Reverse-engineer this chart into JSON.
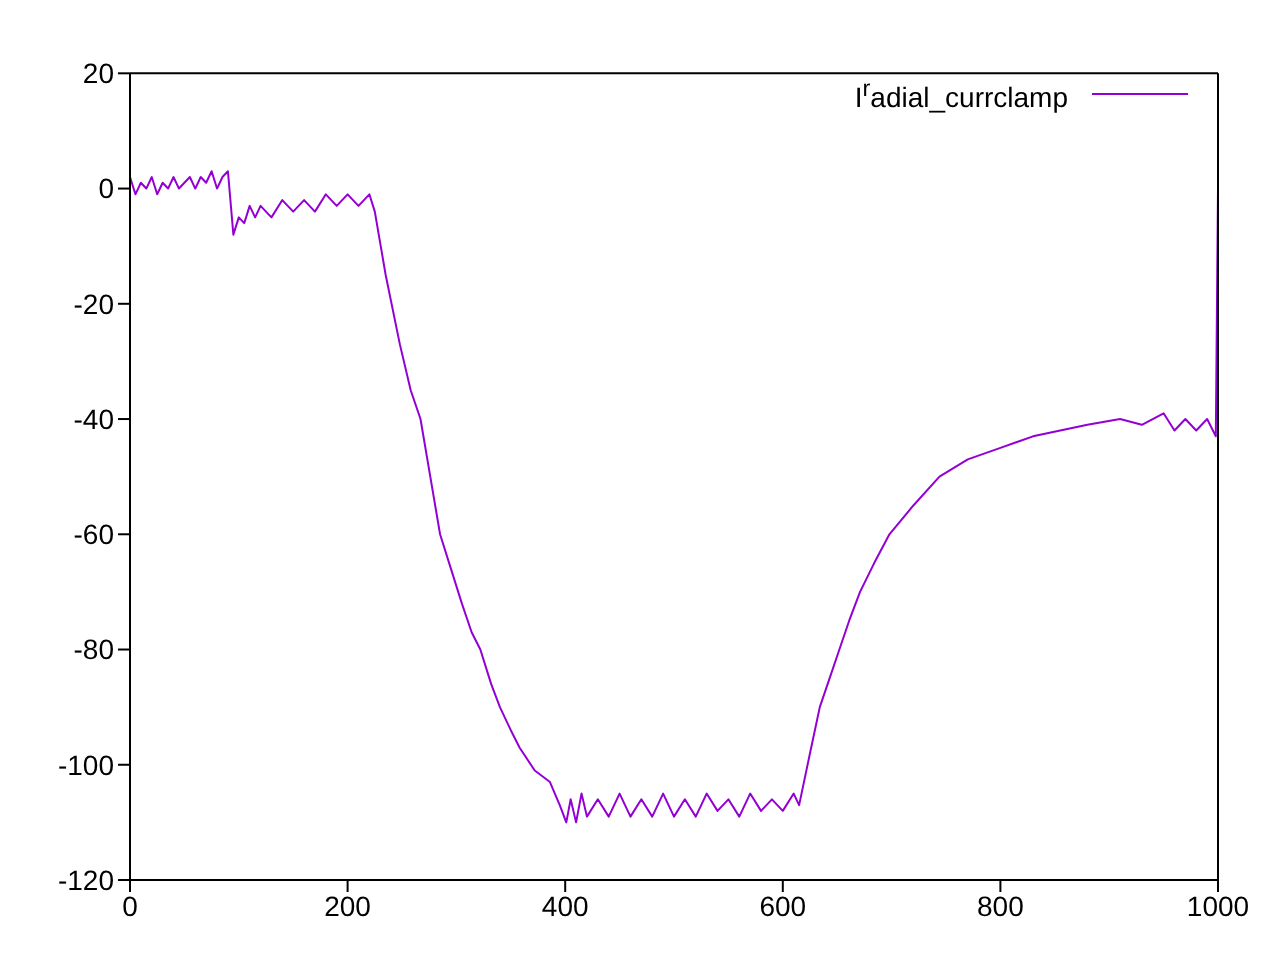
{
  "chart_data": {
    "type": "line",
    "xlim": [
      0,
      1000
    ],
    "xticks": [
      0,
      200,
      400,
      600,
      800,
      1000
    ],
    "ylim": [
      -120,
      20
    ],
    "yticks": [
      -120,
      -100,
      -80,
      -60,
      -40,
      -20,
      0,
      20
    ],
    "grid": false,
    "legend": "top right",
    "marker": "none",
    "line_style": "solid",
    "x": [
      0,
      5,
      10,
      15,
      20,
      25,
      30,
      35,
      40,
      45,
      50,
      55,
      60,
      65,
      70,
      75,
      80,
      85,
      90,
      95,
      100,
      105,
      110,
      115,
      120,
      130,
      140,
      150,
      160,
      170,
      180,
      190,
      200,
      210,
      220,
      225,
      235,
      248,
      258,
      267,
      276,
      285,
      295,
      305,
      314,
      322,
      332,
      340,
      350,
      358,
      372,
      386,
      395,
      401,
      405,
      410,
      415,
      420,
      430,
      440,
      450,
      460,
      470,
      480,
      490,
      500,
      510,
      520,
      530,
      540,
      550,
      560,
      570,
      580,
      590,
      600,
      610,
      615,
      625,
      634,
      643,
      652,
      661,
      671,
      684,
      698,
      720,
      744,
      770,
      800,
      830,
      855,
      880,
      910,
      930,
      950,
      960,
      970,
      980,
      990,
      998,
      1000
    ],
    "series": [
      {
        "name": "I$^{r}$adial_currclamp",
        "color": "#9400d3",
        "values": [
          2,
          -1,
          1,
          0,
          2,
          -1,
          1,
          0,
          2,
          0,
          1,
          2,
          0,
          2,
          1,
          3,
          0,
          2,
          3,
          -8,
          -5,
          -6,
          -3,
          -5,
          -3,
          -5,
          -2,
          -4,
          -2,
          -4,
          -1,
          -3,
          -1,
          -3,
          -1,
          -4,
          -15,
          -27,
          -35,
          -40,
          -50,
          -60,
          -66,
          -72,
          -77,
          -80,
          -86,
          -90,
          -94,
          -97,
          -101,
          -103,
          -107,
          -110,
          -106,
          -110,
          -105,
          -109,
          -106,
          -109,
          -105,
          -109,
          -106,
          -109,
          -105,
          -109,
          -106,
          -109,
          -105,
          -108,
          -106,
          -109,
          -105,
          -108,
          -106,
          -108,
          -105,
          -107,
          -98,
          -90,
          -85,
          -80,
          -75,
          -70,
          -65,
          -60,
          -55,
          -50,
          -47,
          -45,
          -43,
          -42,
          -41,
          -40,
          -41,
          -39,
          -42,
          -40,
          -42,
          -40,
          -43,
          0
        ]
      }
    ]
  }
}
